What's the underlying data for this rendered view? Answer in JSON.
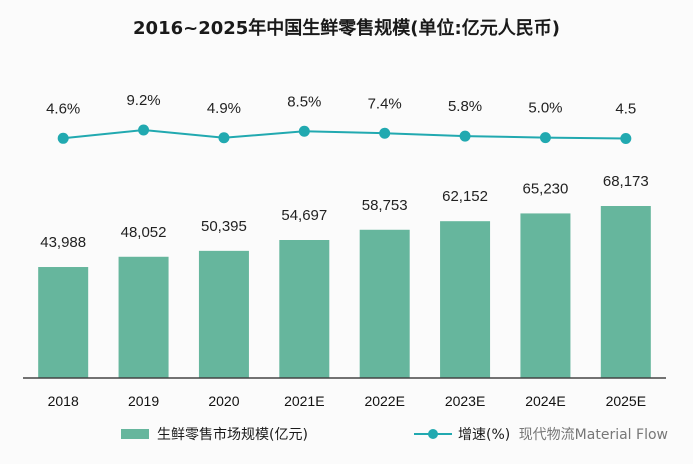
{
  "chart_data": {
    "type": "bar+line",
    "title": "2016~2025年中国生鲜零售规模(单位:亿元人民币)",
    "categories": [
      "2018",
      "2019",
      "2020",
      "2021E",
      "2022E",
      "2023E",
      "2024E",
      "2025E"
    ],
    "series": [
      {
        "name": "生鲜零售市场规模(亿元)",
        "type": "bar",
        "color": "#66b69d",
        "values": [
          43988,
          48052,
          50395,
          54697,
          58753,
          62152,
          65230,
          68173
        ],
        "labels": [
          "43,988",
          "48,052",
          "50,395",
          "54,697",
          "58,753",
          "62,152",
          "65,230",
          "68,173"
        ]
      },
      {
        "name": "增速(%)",
        "type": "line",
        "color": "#21a9b0",
        "values": [
          4.6,
          9.2,
          4.9,
          8.5,
          7.4,
          5.8,
          5.0,
          4.5
        ],
        "labels": [
          "4.6%",
          "9.2%",
          "4.9%",
          "8.5%",
          "7.4%",
          "5.8%",
          "5.0%",
          "4.5"
        ]
      }
    ],
    "ylim_bar": [
      0,
      100000
    ],
    "grid": false,
    "legend": "bottom"
  },
  "legend": {
    "bar_label": "生鲜零售市场规模(亿元)",
    "line_label": "增速(%)",
    "watermark": "现代物流Material Flow"
  }
}
